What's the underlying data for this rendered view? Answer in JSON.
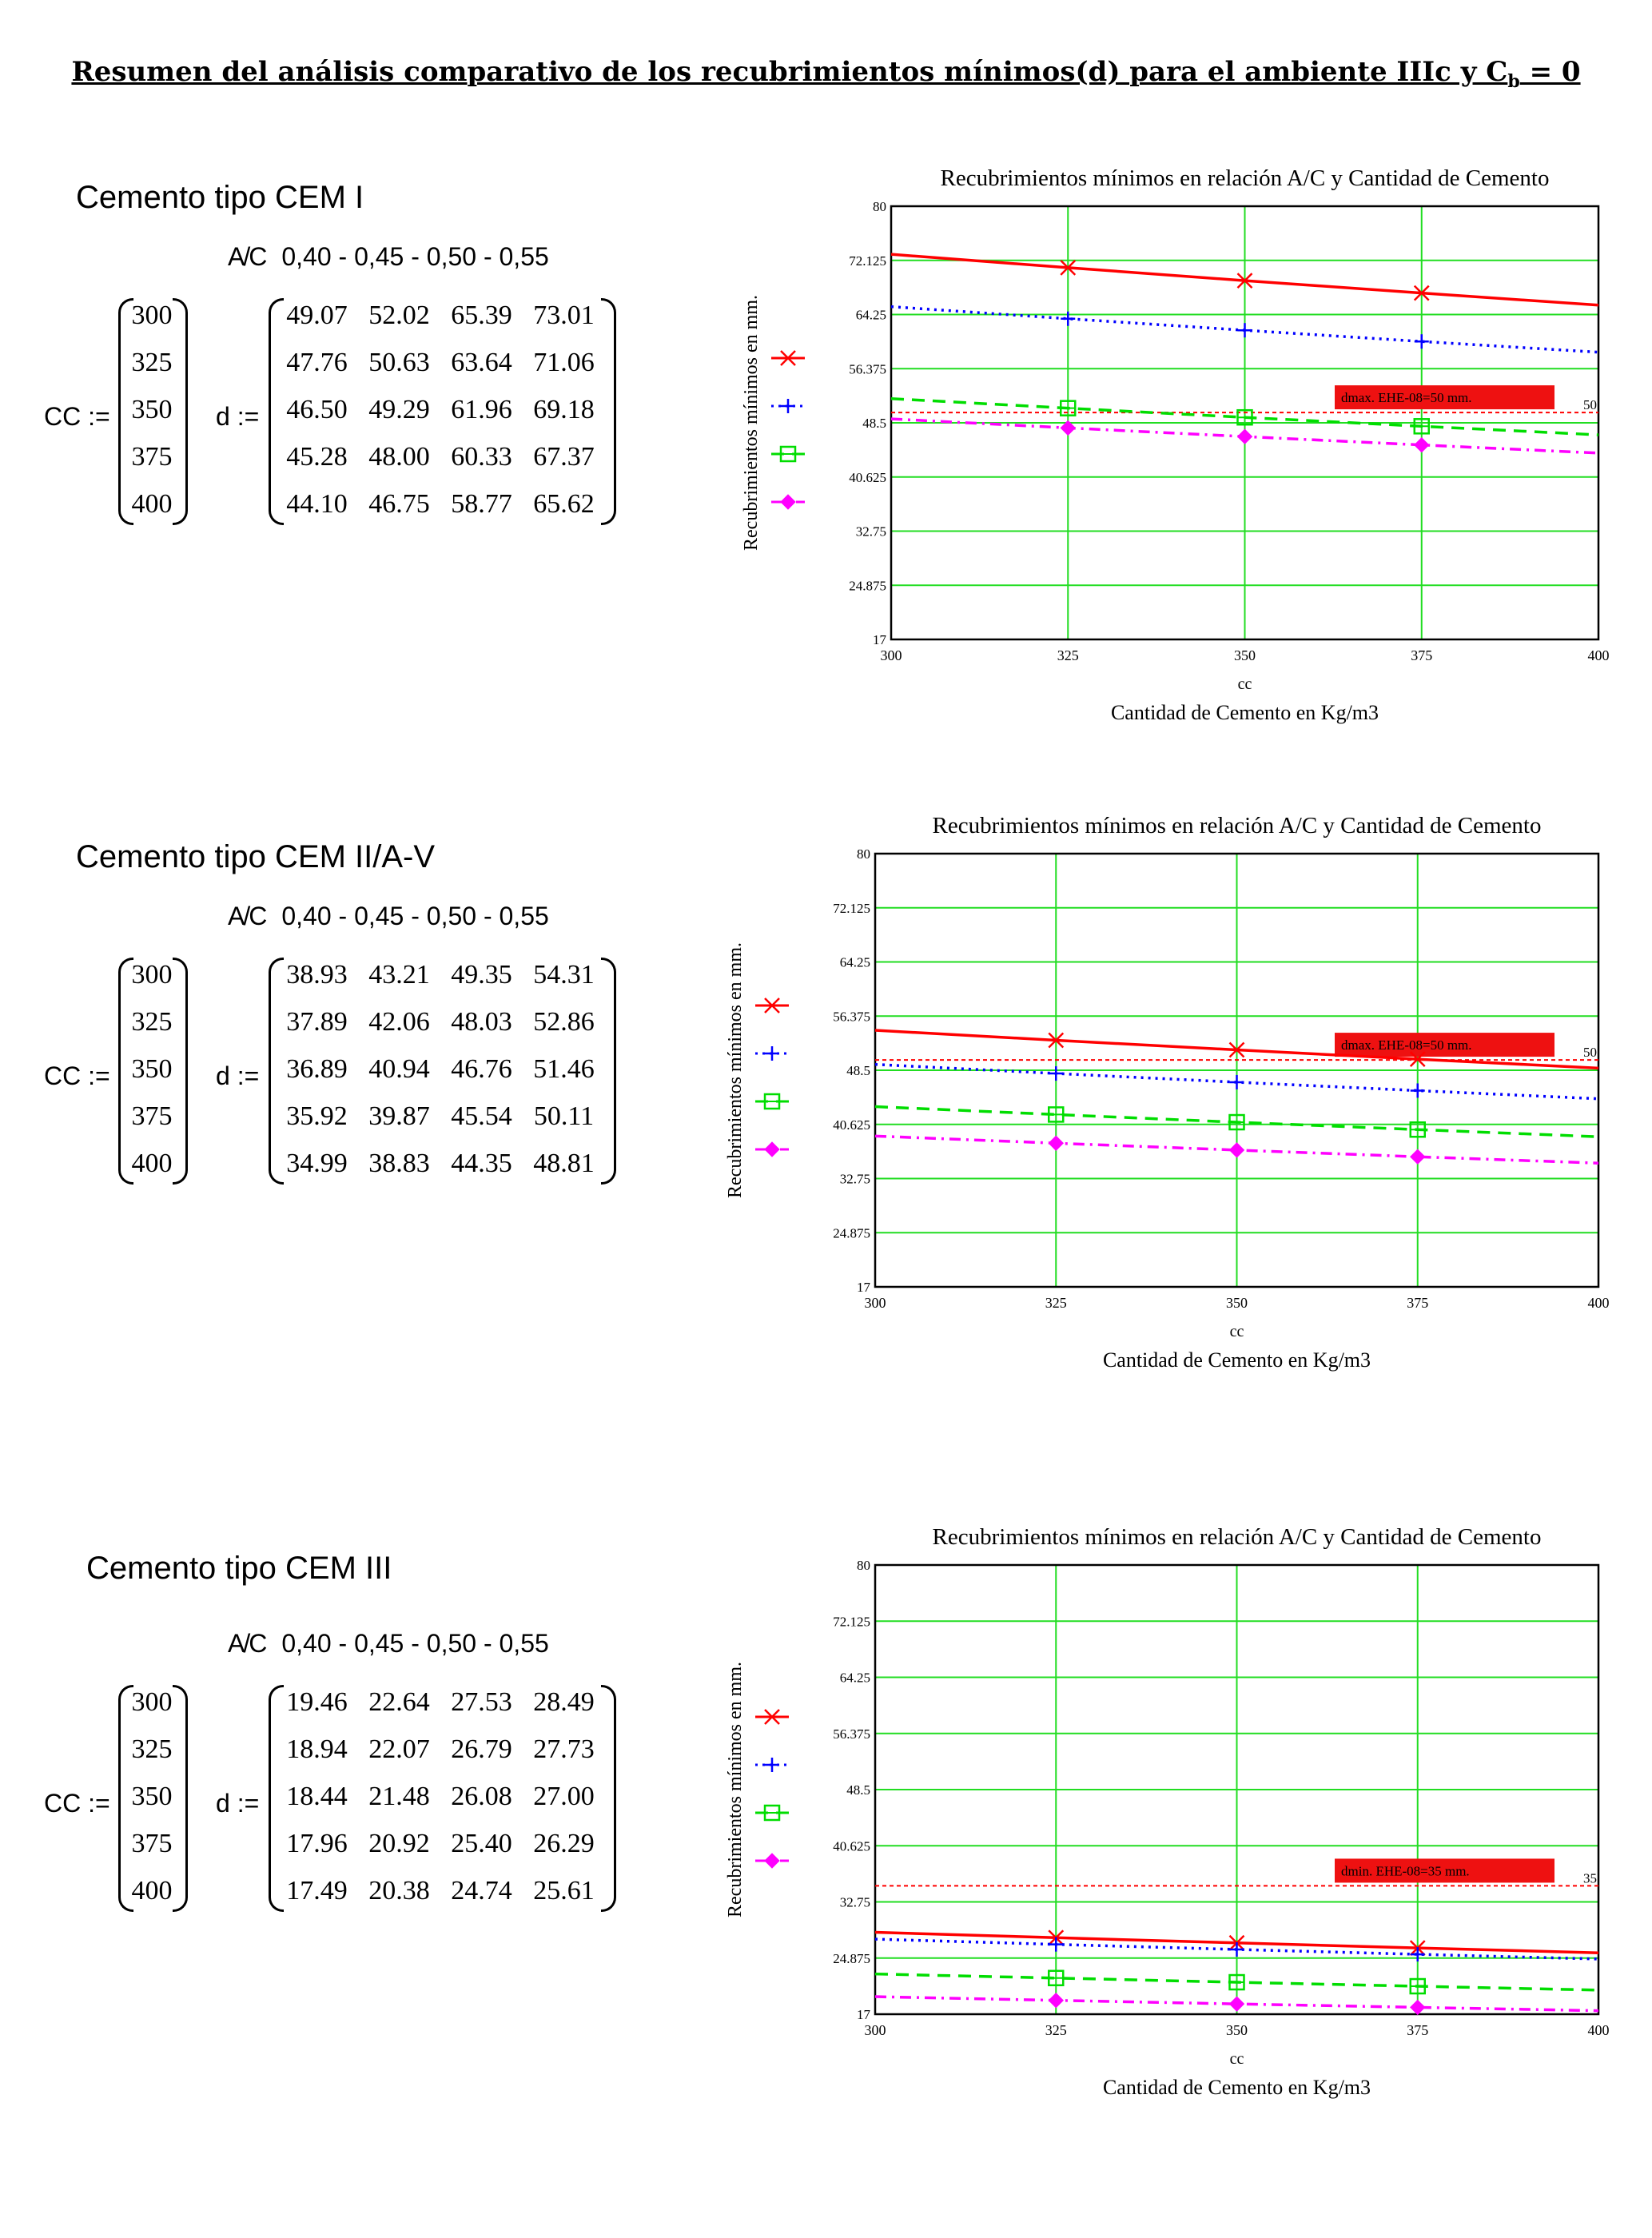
{
  "title": "Resumen del análisis comparativo de los recubrimientos mínimos(d) para el ambiente IIIc y C",
  "title_sub": "b",
  "title_tail": " = 0",
  "matrix_labels": {
    "cc": "CC :=",
    "d": "d :="
  },
  "ac_label": "A/C",
  "ac_values": "0,40 - 0,45 - 0,50 - 0,55",
  "cc_values": [
    "300",
    "325",
    "350",
    "375",
    "400"
  ],
  "sections": [
    {
      "label": "Cemento tipo CEM I",
      "d": [
        [
          "49.07",
          "52.02",
          "65.39",
          "73.01"
        ],
        [
          "47.76",
          "50.63",
          "63.64",
          "71.06"
        ],
        [
          "46.50",
          "49.29",
          "61.96",
          "69.18"
        ],
        [
          "45.28",
          "48.00",
          "60.33",
          "67.37"
        ],
        [
          "44.10",
          "46.75",
          "58.77",
          "65.62"
        ]
      ]
    },
    {
      "label": "Cemento tipo CEM II/A-V",
      "d": [
        [
          "38.93",
          "43.21",
          "49.35",
          "54.31"
        ],
        [
          "37.89",
          "42.06",
          "48.03",
          "52.86"
        ],
        [
          "36.89",
          "40.94",
          "46.76",
          "51.46"
        ],
        [
          "35.92",
          "39.87",
          "45.54",
          "50.11"
        ],
        [
          "34.99",
          "38.83",
          "44.35",
          "48.81"
        ]
      ]
    },
    {
      "label": "Cemento tipo CEM III",
      "d": [
        [
          "19.46",
          "22.64",
          "27.53",
          "28.49"
        ],
        [
          "18.94",
          "22.07",
          "26.79",
          "27.73"
        ],
        [
          "18.44",
          "21.48",
          "26.08",
          "27.00"
        ],
        [
          "17.96",
          "20.92",
          "25.40",
          "26.29"
        ],
        [
          "17.49",
          "20.38",
          "24.74",
          "25.61"
        ]
      ]
    }
  ],
  "colors": {
    "red": "#ff0000",
    "blue": "#0000ff",
    "green": "#00dd00",
    "magenta": "#ff00ff",
    "grid": "#22dd22"
  },
  "chart_data": [
    {
      "type": "line",
      "title": "Recubrimientos mínimos en relación A/C y Cantidad de Cemento",
      "xlabel": "Cantidad de Cemento en Kg/m3",
      "xvar": "cc",
      "ylabel": "Recubrimientos mínimos en mm.",
      "x": [
        300,
        325,
        350,
        375,
        400
      ],
      "xticks": [
        "300",
        "325",
        "350",
        "375",
        "400"
      ],
      "xlim": [
        300,
        400
      ],
      "ylim": [
        17,
        80
      ],
      "yticks": [
        "17",
        "24.875",
        "32.75",
        "40.625",
        "48.5",
        "56.375",
        "64.25",
        "72.125",
        "80"
      ],
      "grid": true,
      "series": [
        {
          "values": [
            73.01,
            71.06,
            69.18,
            67.37,
            65.62
          ],
          "color": "#ff0000",
          "style": "solid",
          "marker": "x"
        },
        {
          "values": [
            65.39,
            63.64,
            61.96,
            60.33,
            58.77
          ],
          "color": "#0000ff",
          "style": "dotted",
          "marker": "+"
        },
        {
          "values": [
            52.02,
            50.63,
            49.29,
            48.0,
            46.75
          ],
          "color": "#00dd00",
          "style": "dashed",
          "marker": "square"
        },
        {
          "values": [
            49.07,
            47.76,
            46.5,
            45.28,
            44.1
          ],
          "color": "#ff00ff",
          "style": "dashdot",
          "marker": "diamond"
        }
      ],
      "reference": {
        "value": 50,
        "value_label": "50",
        "label": "dmax. EHE-08=50 mm."
      }
    },
    {
      "type": "line",
      "title": "Recubrimientos mínimos en relación A/C y Cantidad de Cemento",
      "xlabel": "Cantidad de Cemento en Kg/m3",
      "xvar": "cc",
      "ylabel": "Recubrimientos mínimos en mm.",
      "x": [
        300,
        325,
        350,
        375,
        400
      ],
      "xticks": [
        "300",
        "325",
        "350",
        "375",
        "400"
      ],
      "xlim": [
        300,
        400
      ],
      "ylim": [
        17,
        80
      ],
      "yticks": [
        "17",
        "24.875",
        "32.75",
        "40.625",
        "48.5",
        "56.375",
        "64.25",
        "72.125",
        "80"
      ],
      "grid": true,
      "series": [
        {
          "values": [
            54.31,
            52.86,
            51.46,
            50.11,
            48.81
          ],
          "color": "#ff0000",
          "style": "solid",
          "marker": "x"
        },
        {
          "values": [
            49.35,
            48.03,
            46.76,
            45.54,
            44.35
          ],
          "color": "#0000ff",
          "style": "dotted",
          "marker": "+"
        },
        {
          "values": [
            43.21,
            42.06,
            40.94,
            39.87,
            38.83
          ],
          "color": "#00dd00",
          "style": "dashed",
          "marker": "square"
        },
        {
          "values": [
            38.93,
            37.89,
            36.89,
            35.92,
            34.99
          ],
          "color": "#ff00ff",
          "style": "dashdot",
          "marker": "diamond"
        }
      ],
      "reference": {
        "value": 50,
        "value_label": "50",
        "label": "dmax. EHE-08=50 mm."
      }
    },
    {
      "type": "line",
      "title": "Recubrimientos mínimos en relación A/C y Cantidad de Cemento",
      "xlabel": "Cantidad de Cemento en Kg/m3",
      "xvar": "cc",
      "ylabel": "Recubrimientos mínimos en mm.",
      "x": [
        300,
        325,
        350,
        375,
        400
      ],
      "xticks": [
        "300",
        "325",
        "350",
        "375",
        "400"
      ],
      "xlim": [
        300,
        400
      ],
      "ylim": [
        17,
        80
      ],
      "yticks": [
        "17",
        "24.875",
        "32.75",
        "40.625",
        "48.5",
        "56.375",
        "64.25",
        "72.125",
        "80"
      ],
      "grid": true,
      "series": [
        {
          "values": [
            28.49,
            27.73,
            27.0,
            26.29,
            25.61
          ],
          "color": "#ff0000",
          "style": "solid",
          "marker": "x"
        },
        {
          "values": [
            27.53,
            26.79,
            26.08,
            25.4,
            24.74
          ],
          "color": "#0000ff",
          "style": "dotted",
          "marker": "+"
        },
        {
          "values": [
            22.64,
            22.07,
            21.48,
            20.92,
            20.38
          ],
          "color": "#00dd00",
          "style": "dashed",
          "marker": "square"
        },
        {
          "values": [
            19.46,
            18.94,
            18.44,
            17.96,
            17.49
          ],
          "color": "#ff00ff",
          "style": "dashdot",
          "marker": "diamond"
        }
      ],
      "reference": {
        "value": 35,
        "value_label": "35",
        "label": "dmin. EHE-08=35 mm."
      }
    }
  ]
}
